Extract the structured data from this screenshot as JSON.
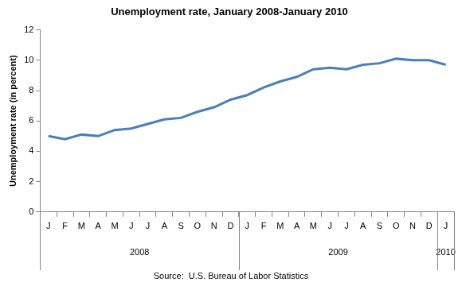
{
  "chart_data": {
    "type": "line",
    "title": "Unemployment rate, January 2008-January 2010",
    "y_label": "Unemployment rate (in percent)",
    "source": "Source:  U.S. Bureau of Labor Statistics",
    "categories": [
      "J",
      "F",
      "M",
      "A",
      "M",
      "J",
      "J",
      "A",
      "S",
      "O",
      "N",
      "D",
      "J",
      "F",
      "M",
      "A",
      "M",
      "J",
      "J",
      "A",
      "S",
      "O",
      "N",
      "D",
      "J"
    ],
    "groups": [
      {
        "label": "2008",
        "count": 12
      },
      {
        "label": "2009",
        "count": 12
      },
      {
        "label": "2010",
        "count": 1
      }
    ],
    "values": [
      5.0,
      4.8,
      5.1,
      5.0,
      5.4,
      5.5,
      5.8,
      6.1,
      6.2,
      6.6,
      6.9,
      7.4,
      7.7,
      8.2,
      8.6,
      8.9,
      9.4,
      9.5,
      9.4,
      9.7,
      9.8,
      10.1,
      10.0,
      10.0,
      9.7
    ],
    "color": "#4a7ebb",
    "ylim": [
      0,
      12
    ],
    "yticks": [
      0,
      2,
      4,
      6,
      8,
      10,
      12
    ],
    "grid": false
  }
}
